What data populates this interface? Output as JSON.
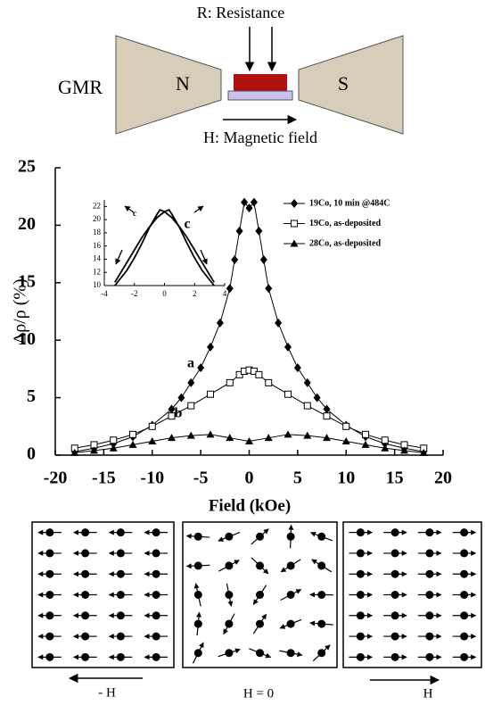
{
  "diagram": {
    "label": "GMR",
    "left_pole": "N",
    "right_pole": "S",
    "resistance": "R: Resistance",
    "field": "H: Magnetic field"
  },
  "chart_data": [
    {
      "type": "line",
      "xlabel": "Field  (kOe)",
      "ylabel": "Δρ/ρ (%)",
      "xlim": [
        -20,
        20
      ],
      "ylim": [
        0,
        25
      ],
      "xticks": [
        -20,
        -15,
        -10,
        -5,
        0,
        5,
        10,
        15,
        20
      ],
      "yticks": [
        0,
        5,
        10,
        15,
        20,
        25
      ],
      "annotations": [
        "c",
        "a",
        "b"
      ],
      "series": [
        {
          "name": "19Co, 10 min @484C",
          "color": "#000000",
          "marker": "diamond",
          "x": [
            -18,
            -16,
            -14,
            -12,
            -10,
            -8,
            -7,
            -6,
            -5,
            -4,
            -3,
            -2,
            -1.5,
            -1,
            -0.5,
            0,
            0.5,
            1,
            1.5,
            2,
            3,
            4,
            5,
            6,
            7,
            8,
            10,
            12,
            14,
            16,
            18
          ],
          "values": [
            0.3,
            0.6,
            1.0,
            1.6,
            2.6,
            4.0,
            5.0,
            6.3,
            7.6,
            9.4,
            11.5,
            14.5,
            17,
            19.5,
            22,
            21.5,
            22,
            19.5,
            17,
            14.5,
            11.5,
            9.4,
            7.6,
            6.3,
            5.0,
            4.0,
            2.6,
            1.6,
            1.0,
            0.6,
            0.3
          ]
        },
        {
          "name": "19Co, as-deposited",
          "color": "#000000",
          "marker": "square",
          "x": [
            -18,
            -16,
            -14,
            -12,
            -10,
            -8,
            -6,
            -4,
            -2,
            -1,
            -0.5,
            0,
            0.5,
            1,
            2,
            4,
            6,
            8,
            10,
            12,
            14,
            16,
            18
          ],
          "values": [
            0.6,
            0.9,
            1.3,
            1.8,
            2.5,
            3.4,
            4.3,
            5.3,
            6.3,
            7.0,
            7.3,
            7.4,
            7.3,
            7.0,
            6.3,
            5.3,
            4.3,
            3.4,
            2.5,
            1.8,
            1.3,
            0.9,
            0.6
          ]
        },
        {
          "name": "28Co, as-deposited",
          "color": "#000000",
          "marker": "triangle",
          "x": [
            -18,
            -16,
            -14,
            -12,
            -10,
            -8,
            -6,
            -4,
            -2,
            0,
            2,
            4,
            6,
            8,
            10,
            12,
            14,
            16,
            18
          ],
          "values": [
            0.2,
            0.4,
            0.6,
            0.9,
            1.2,
            1.5,
            1.7,
            1.8,
            1.5,
            1.2,
            1.5,
            1.8,
            1.7,
            1.5,
            1.2,
            0.9,
            0.6,
            0.4,
            0.2
          ]
        }
      ]
    },
    {
      "type": "line",
      "xlim": [
        -4,
        4
      ],
      "ylim": [
        10,
        23
      ],
      "xticks": [
        -4,
        -2,
        0,
        2,
        4
      ],
      "yticks": [
        10,
        12,
        14,
        16,
        18,
        20,
        22
      ],
      "annotations": [
        "c"
      ],
      "series": [
        {
          "color": "#000000",
          "x": [
            -3.3,
            -2.5,
            -2,
            -1.5,
            -1,
            -0.5,
            -0.3,
            0,
            0.5,
            1,
            1.5,
            2,
            2.5,
            3.3
          ],
          "values": [
            10,
            12.3,
            14.2,
            16.4,
            18.8,
            20.8,
            21.5,
            21.2,
            20.3,
            18.9,
            17.3,
            15.4,
            13.5,
            10.5
          ]
        },
        {
          "color": "#000000",
          "x": [
            -3.3,
            -2.5,
            -2,
            -1.5,
            -1,
            -0.5,
            0,
            0.3,
            0.5,
            1,
            1.5,
            2,
            2.5,
            3.3
          ],
          "values": [
            10.5,
            13.5,
            15.4,
            17.3,
            18.9,
            20.3,
            21.2,
            21.5,
            20.8,
            18.8,
            16.4,
            14.2,
            12.3,
            10
          ]
        }
      ]
    }
  ],
  "spin_panels": [
    "- H",
    "H = 0",
    "H"
  ]
}
